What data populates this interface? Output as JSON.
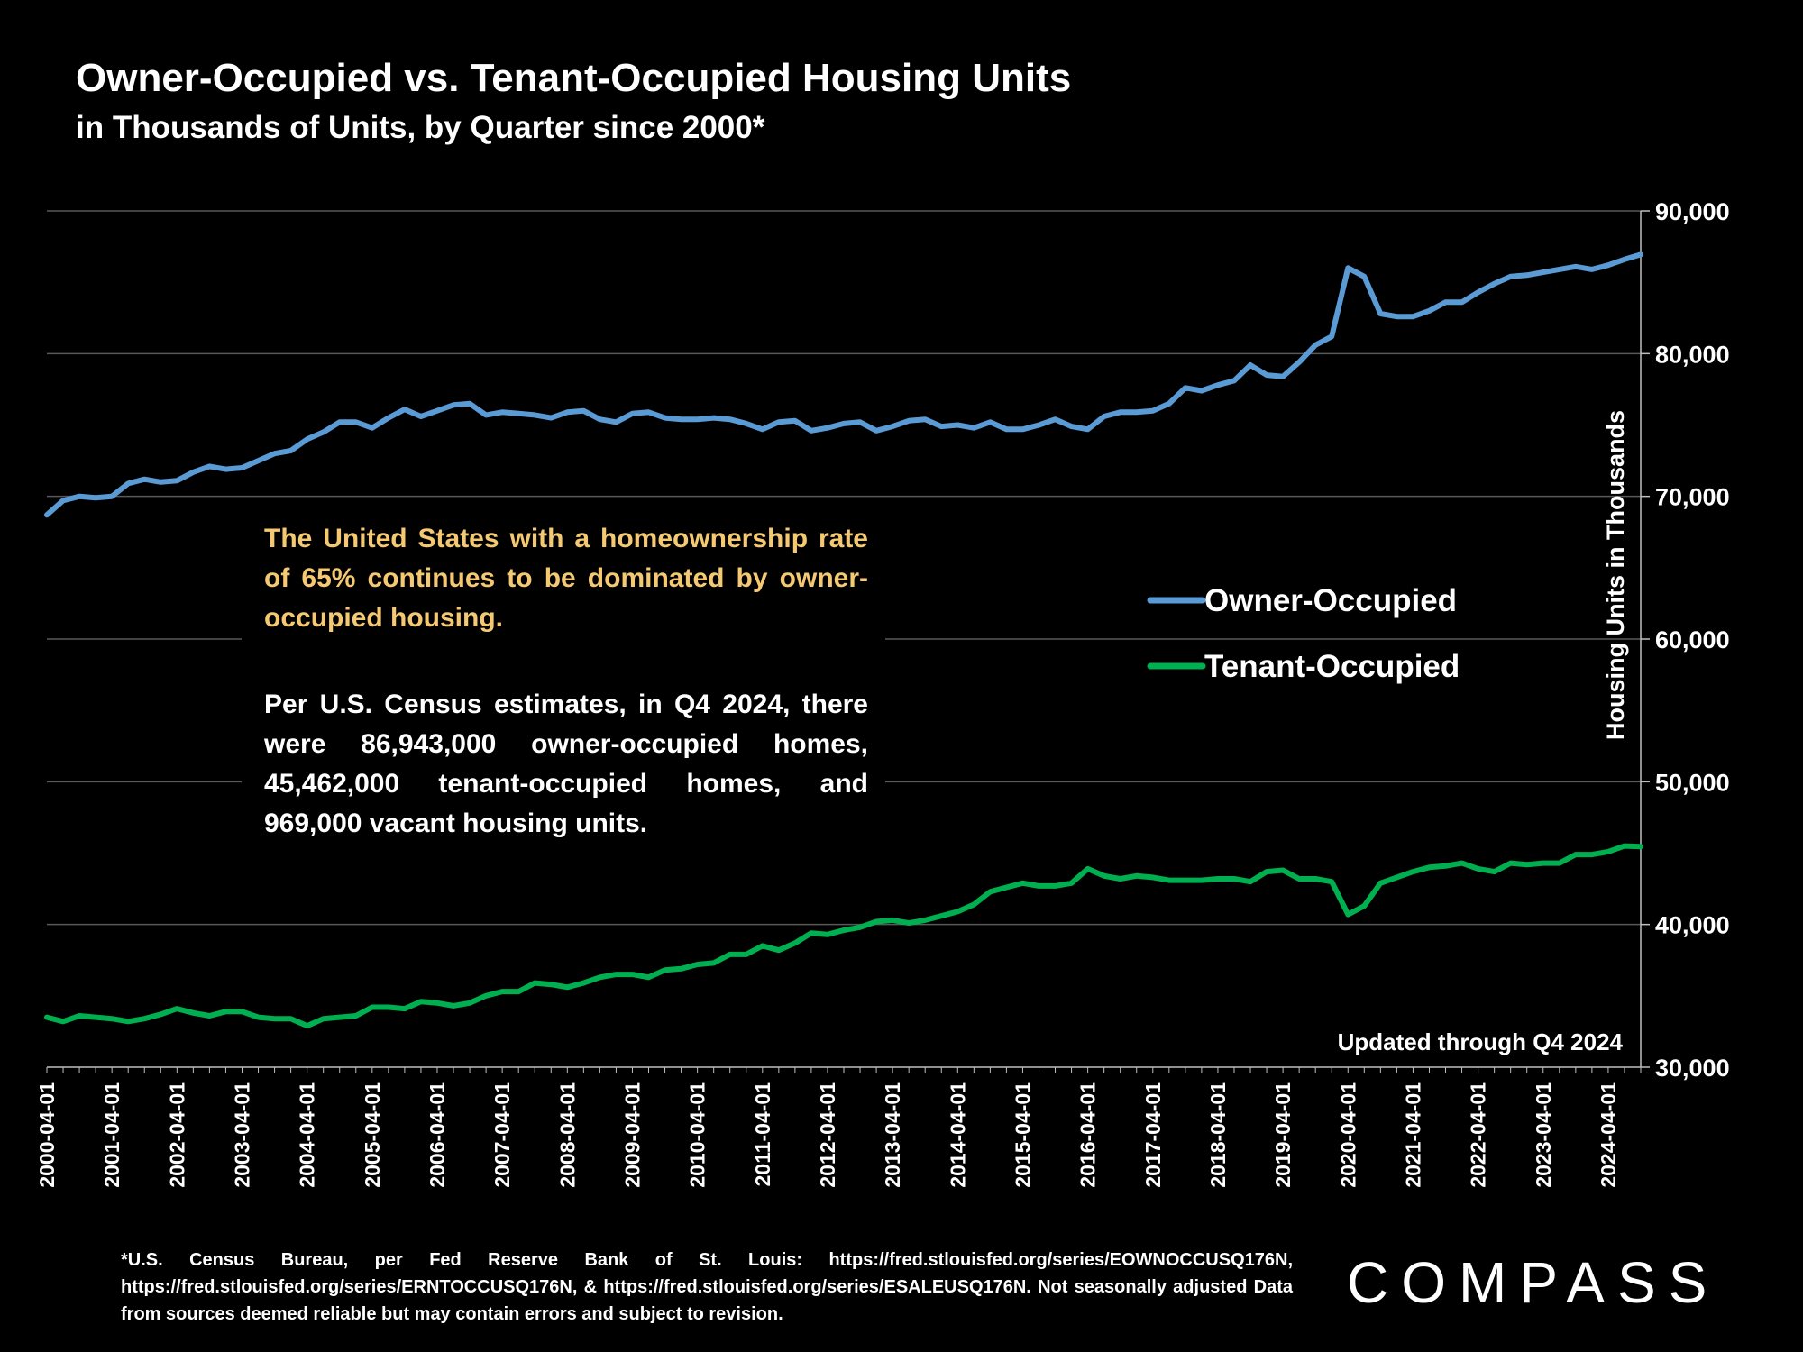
{
  "title": "Owner-Occupied vs. Tenant-Occupied Housing Units",
  "subtitle": "in Thousands of Units, by Quarter since 2000*",
  "callout": {
    "headline": "The United States with a homeownership rate of 65% continues to be dominated by owner-occupied housing.",
    "body": "Per U.S. Census estimates, in Q4 2024, there were 86,943,000 owner-occupied homes, 45,462,000 tenant-occupied homes, and 969,000 vacant housing units."
  },
  "updated_note": "Updated through Q4 2024",
  "footnote": "*U.S. Census Bureau, per Fed Reserve Bank of St. Louis: https://fred.stlouisfed.org/series/EOWNOCCUSQ176N, https://fred.stlouisfed.org/series/ERNTOCCUSQ176N, & https://fred.stlouisfed.org/series/ESALEUSQ176N. Not seasonally adjusted Data from sources deemed reliable but may contain errors and subject to revision.",
  "logo": "COMPASS",
  "colors": {
    "owner": "#5B9BD5",
    "tenant": "#00B050",
    "highlight": "#F5C971",
    "grid": "#595959"
  },
  "chart_data": {
    "type": "line",
    "title": "Owner-Occupied vs. Tenant-Occupied Housing Units",
    "ylabel": "Housing Units in Thousands",
    "xlabel": "",
    "ylim": [
      30000,
      90000
    ],
    "yticks": [
      30000,
      40000,
      50000,
      60000,
      70000,
      80000,
      90000
    ],
    "ytick_labels": [
      "30,000",
      "40,000",
      "50,000",
      "60,000",
      "70,000",
      "80,000",
      "90,000"
    ],
    "x_tick_labels": [
      "2000-04-01",
      "2001-04-01",
      "2002-04-01",
      "2003-04-01",
      "2004-04-01",
      "2005-04-01",
      "2006-04-01",
      "2007-04-01",
      "2008-04-01",
      "2009-04-01",
      "2010-04-01",
      "2011-04-01",
      "2012-04-01",
      "2013-04-01",
      "2014-04-01",
      "2015-04-01",
      "2016-04-01",
      "2017-04-01",
      "2018-04-01",
      "2019-04-01",
      "2020-04-01",
      "2021-04-01",
      "2022-04-01",
      "2023-04-01",
      "2024-04-01"
    ],
    "x_start": "2000-04-01",
    "x_end": "2024-10-01",
    "frequency": "quarterly",
    "legend": [
      "Owner-Occupied",
      "Tenant-Occupied"
    ],
    "legend_position": "right",
    "series": [
      {
        "name": "Owner-Occupied",
        "values": [
          68700,
          69700,
          70000,
          69900,
          70000,
          70900,
          71200,
          71000,
          71100,
          71700,
          72100,
          71900,
          72000,
          72500,
          73000,
          73200,
          74000,
          74500,
          75200,
          75200,
          74800,
          75500,
          76100,
          75600,
          76000,
          76400,
          76500,
          75700,
          75900,
          75800,
          75700,
          75500,
          75900,
          76000,
          75400,
          75200,
          75800,
          75900,
          75500,
          75400,
          75400,
          75500,
          75400,
          75100,
          74700,
          75200,
          75300,
          74600,
          74800,
          75100,
          75200,
          74600,
          74900,
          75300,
          75400,
          74900,
          75000,
          74800,
          75200,
          74700,
          74700,
          75000,
          75400,
          74900,
          74700,
          75600,
          75900,
          75900,
          76000,
          76500,
          77600,
          77400,
          77800,
          78100,
          79200,
          78500,
          78400,
          79400,
          80600,
          81200,
          86000,
          85400,
          82800,
          82600,
          82600,
          83000,
          83600,
          83600,
          84300,
          84900,
          85400,
          85500,
          85700,
          85900,
          86100,
          85900,
          86200,
          86600,
          86943
        ]
      },
      {
        "name": "Tenant-Occupied",
        "values": [
          33500,
          33200,
          33600,
          33500,
          33400,
          33200,
          33400,
          33700,
          34100,
          33800,
          33600,
          33900,
          33900,
          33500,
          33400,
          33400,
          32900,
          33400,
          33500,
          33600,
          34200,
          34200,
          34100,
          34600,
          34500,
          34300,
          34500,
          35000,
          35300,
          35300,
          35900,
          35800,
          35600,
          35900,
          36300,
          36500,
          36500,
          36300,
          36800,
          36900,
          37200,
          37300,
          37900,
          37900,
          38500,
          38200,
          38700,
          39400,
          39300,
          39600,
          39800,
          40200,
          40300,
          40100,
          40300,
          40600,
          40900,
          41400,
          42300,
          42600,
          42900,
          42700,
          42700,
          42900,
          43900,
          43400,
          43200,
          43400,
          43300,
          43100,
          43100,
          43100,
          43200,
          43200,
          43000,
          43700,
          43800,
          43200,
          43200,
          43000,
          40700,
          41300,
          42900,
          43300,
          43700,
          44000,
          44100,
          44300,
          43900,
          43700,
          44300,
          44200,
          44300,
          44300,
          44900,
          44900,
          45100,
          45500,
          45462
        ]
      }
    ]
  }
}
